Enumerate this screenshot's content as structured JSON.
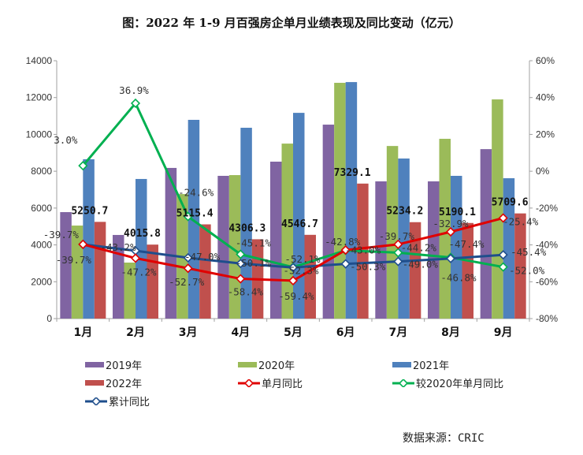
{
  "chart_data": {
    "type": "bar",
    "title": "图：2022 年 1-9 月百强房企单月业绩表现及同比变动（亿元）",
    "categories": [
      "1月",
      "2月",
      "3月",
      "4月",
      "5月",
      "6月",
      "7月",
      "8月",
      "9月"
    ],
    "y_left": {
      "range": [
        0,
        14000
      ],
      "ticks": [
        "0",
        "2000",
        "4000",
        "6000",
        "8000",
        "10000",
        "12000",
        "14000"
      ]
    },
    "y_right": {
      "range": [
        -80,
        60
      ],
      "ticks": [
        "-80%",
        "-60%",
        "-40%",
        "-20%",
        "0%",
        "20%",
        "40%",
        "60%"
      ]
    },
    "bar_series": [
      {
        "name": "2019年",
        "color": "#8064A2",
        "values": [
          5780,
          4540,
          8180,
          7750,
          8520,
          10530,
          7450,
          7450,
          9200
        ]
      },
      {
        "name": "2020年",
        "color": "#9BBB59",
        "values": [
          5050,
          3040,
          6760,
          7790,
          9500,
          12800,
          9370,
          9760,
          11900
        ]
      },
      {
        "name": "2021年",
        "color": "#4F81BD",
        "values": [
          8650,
          7580,
          10790,
          10360,
          11170,
          12840,
          8690,
          7750,
          7620
        ]
      },
      {
        "name": "2022年",
        "color": "#C0504D",
        "values": [
          5250.7,
          4015.8,
          5115.4,
          4306.3,
          4546.7,
          7329.1,
          5234.2,
          5190.1,
          5709.6
        ],
        "labels": [
          "5250.7",
          "4015.8",
          "5115.4",
          "4306.3",
          "4546.7",
          "7329.1",
          "5234.2",
          "5190.1",
          "5709.6"
        ]
      }
    ],
    "line_series": [
      {
        "name": "单月同比",
        "color": "#E00000",
        "axis": "right",
        "values": [
          -39.7,
          -47.2,
          -52.7,
          -58.4,
          -59.4,
          -42.8,
          -39.7,
          -32.9,
          -25.4
        ],
        "labels": [
          "-39.7%",
          "-47.2%",
          "-52.7%",
          "-58.4%",
          "-59.4%",
          "-42.8%",
          "-39.7%",
          "-32.9%",
          "-25.4%"
        ]
      },
      {
        "name": "较2020年单月同比",
        "color": "#00B050",
        "axis": "right",
        "values": [
          3.0,
          36.9,
          -24.6,
          -45.1,
          -52.1,
          -43.0,
          -44.2,
          -46.8,
          -52.0
        ],
        "labels": [
          "3.0%",
          "36.9%",
          "-24.6%",
          "-45.1%",
          "-52.1%",
          "-43.0%",
          "-44.2%",
          "-46.8%",
          "-52.0%"
        ]
      },
      {
        "name": "累计同比",
        "color": "#1F4E8C",
        "axis": "right",
        "values": [
          -39.7,
          -43.2,
          -47.0,
          -50.1,
          -52.3,
          -50.3,
          -49.0,
          -47.4,
          -45.4
        ],
        "labels": [
          "-39.7%",
          "-43.2%",
          "-47.0%",
          "-50.1%",
          "-52.3%",
          "-50.3%",
          "-49.0%",
          "-47.4%",
          "-45.4%"
        ]
      }
    ],
    "legend_position": "bottom",
    "grid": false
  },
  "source": "数据来源：CRIC"
}
